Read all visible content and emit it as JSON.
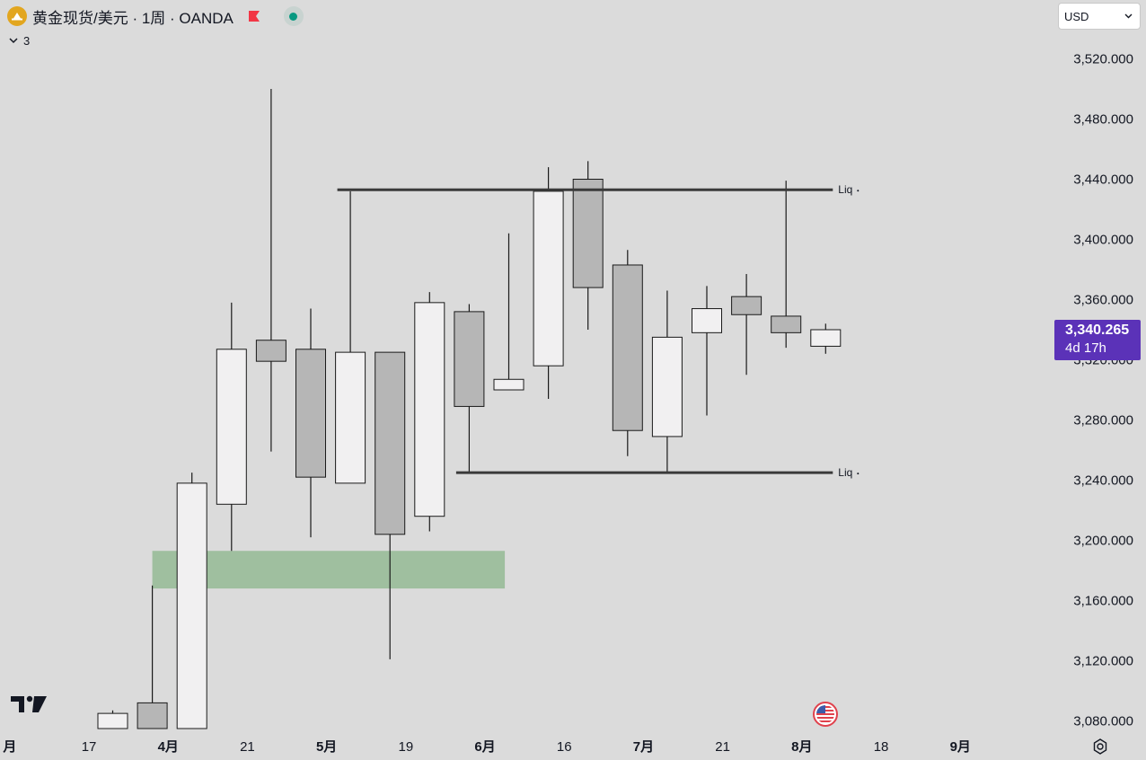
{
  "header": {
    "symbol_title": "黄金现货/美元 · 1周 · OANDA",
    "indicator_count": "3",
    "currency": "USD"
  },
  "price_tag": {
    "price": "3,340.265",
    "countdown": "4d 17h"
  },
  "colors": {
    "background": "#dbdbdb",
    "up_candle_fill": "#f1f0f1",
    "down_candle_fill": "#b6b6b6",
    "candle_border": "#1a1a1a",
    "level_line": "#3a3a3a",
    "zone_fill": "#9fbf9f",
    "price_tag": "#5b32b8",
    "logo": "#e2a61f",
    "status_dot": "#089981"
  },
  "icons": {
    "logo": "gold-coin-icon",
    "flag": "red-flag-icon",
    "status": "market-open-dot-icon",
    "collapse": "chevron-down-icon",
    "select": "chevron-down-icon",
    "brand": "tradingview-logo-icon",
    "event": "us-flag-event-icon",
    "settings": "gear-icon"
  },
  "chart_data": {
    "type": "candlestick",
    "title": "黄金现货/美元 · 1周 · OANDA",
    "ylabel": "",
    "xlabel": "",
    "ylim": [
      3063,
      3547
    ],
    "grid": false,
    "y_ticks": [
      {
        "value": 3520,
        "label": "3,520.000"
      },
      {
        "value": 3480,
        "label": "3,480.000"
      },
      {
        "value": 3440,
        "label": "3,440.000"
      },
      {
        "value": 3400,
        "label": "3,400.000"
      },
      {
        "value": 3360,
        "label": "3,360.000"
      },
      {
        "value": 3320,
        "label": "3,320.000"
      },
      {
        "value": 3280,
        "label": "3,280.000"
      },
      {
        "value": 3240,
        "label": "3,240.000"
      },
      {
        "value": 3200,
        "label": "3,200.000"
      },
      {
        "value": 3160,
        "label": "3,160.000"
      },
      {
        "value": 3120,
        "label": "3,120.000"
      },
      {
        "value": 3080,
        "label": "3,080.000"
      }
    ],
    "x_ticks": [
      {
        "index": -2.6,
        "label": "月",
        "bold": true
      },
      {
        "index": -0.6,
        "label": "17",
        "bold": false
      },
      {
        "index": 1.4,
        "label": "4月",
        "bold": true
      },
      {
        "index": 3.4,
        "label": "21",
        "bold": false
      },
      {
        "index": 5.4,
        "label": "5月",
        "bold": true
      },
      {
        "index": 7.4,
        "label": "19",
        "bold": false
      },
      {
        "index": 9.4,
        "label": "6月",
        "bold": true
      },
      {
        "index": 11.4,
        "label": "16",
        "bold": false
      },
      {
        "index": 13.4,
        "label": "7月",
        "bold": true
      },
      {
        "index": 15.4,
        "label": "21",
        "bold": false
      },
      {
        "index": 17.4,
        "label": "8月",
        "bold": true
      },
      {
        "index": 19.4,
        "label": "18",
        "bold": false
      },
      {
        "index": 21.4,
        "label": "9月",
        "bold": true
      }
    ],
    "candles": [
      {
        "o": 3073,
        "h": 3087,
        "l": 3063,
        "c": 3085
      },
      {
        "o": 3092,
        "h": 3170,
        "l": 3063,
        "c": 3063
      },
      {
        "o": 3063,
        "h": 3245,
        "l": 3063,
        "c": 3238
      },
      {
        "o": 3224,
        "h": 3358,
        "l": 3193,
        "c": 3327
      },
      {
        "o": 3333,
        "h": 3500,
        "l": 3259,
        "c": 3319
      },
      {
        "o": 3327,
        "h": 3354,
        "l": 3202,
        "c": 3242
      },
      {
        "o": 3238,
        "h": 3432,
        "l": 3238,
        "c": 3325
      },
      {
        "o": 3325,
        "h": 3325,
        "l": 3121,
        "c": 3204
      },
      {
        "o": 3216,
        "h": 3365,
        "l": 3206,
        "c": 3358
      },
      {
        "o": 3352,
        "h": 3357,
        "l": 3245,
        "c": 3289
      },
      {
        "o": 3300,
        "h": 3404,
        "l": 3300,
        "c": 3307
      },
      {
        "o": 3316,
        "h": 3448,
        "l": 3294,
        "c": 3432
      },
      {
        "o": 3440,
        "h": 3452,
        "l": 3340,
        "c": 3368
      },
      {
        "o": 3383,
        "h": 3393,
        "l": 3256,
        "c": 3273
      },
      {
        "o": 3269,
        "h": 3366,
        "l": 3245,
        "c": 3335
      },
      {
        "o": 3338,
        "h": 3369,
        "l": 3283,
        "c": 3354
      },
      {
        "o": 3362,
        "h": 3377,
        "l": 3310,
        "c": 3350
      },
      {
        "o": 3349,
        "h": 3439,
        "l": 3328,
        "c": 3338
      },
      {
        "o": 3329,
        "h": 3344,
        "l": 3324,
        "c": 3340
      }
    ],
    "annotations": [
      {
        "type": "hline",
        "label": "Liq",
        "y": 3433,
        "from_index": 6,
        "to_index": 18
      },
      {
        "type": "hline",
        "label": "Liq",
        "y": 3245,
        "from_index": 9,
        "to_index": 18
      },
      {
        "type": "zone",
        "y_top": 3193,
        "y_bottom": 3168,
        "from_index": 1,
        "to_index": 9.9
      }
    ],
    "last_price": 3340.265
  }
}
